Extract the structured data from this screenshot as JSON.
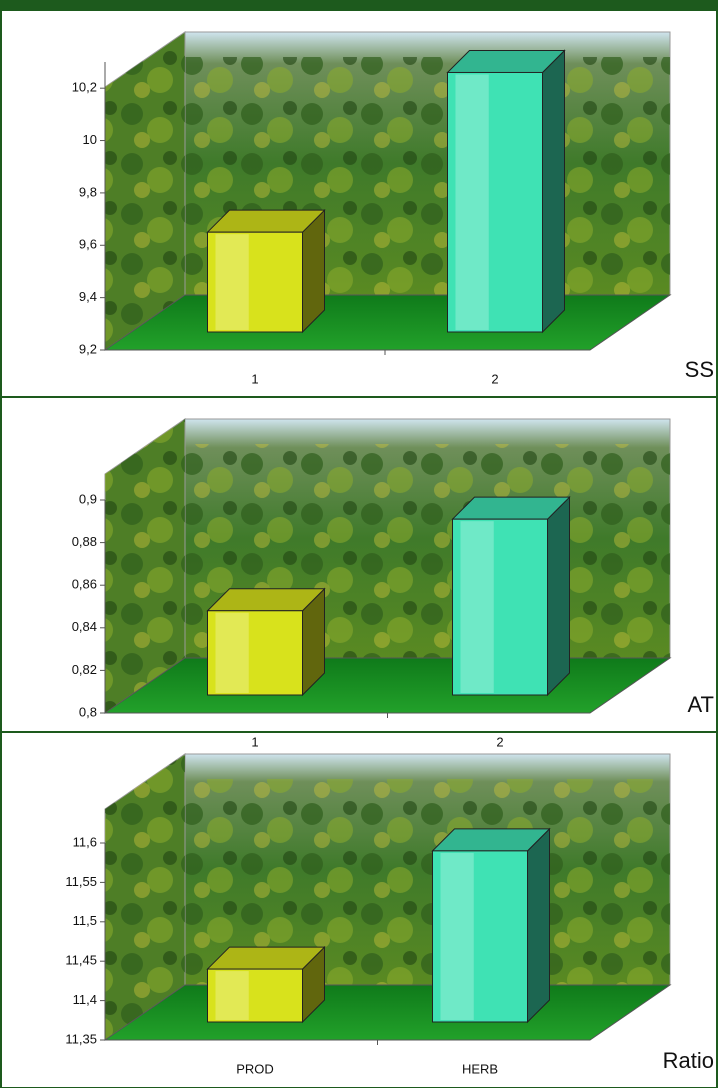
{
  "chart_data": [
    {
      "type": "bar3d",
      "title": "SS",
      "categories": [
        "1",
        "2"
      ],
      "values": [
        9.65,
        10.26
      ],
      "colors": [
        "#d8e21c",
        "#3fe2b4"
      ],
      "ylim": [
        9.2,
        10.3
      ],
      "yticks": [
        {
          "value": 9.2,
          "label": "9,2"
        },
        {
          "value": 9.4,
          "label": "9,4"
        },
        {
          "value": 9.6,
          "label": "9,6"
        },
        {
          "value": 9.8,
          "label": "9,8"
        },
        10,
        {
          "value": 10.2,
          "label": "10,2"
        }
      ]
    },
    {
      "type": "bar3d",
      "title": "AT",
      "categories": [
        "1",
        "2"
      ],
      "values": [
        0.848,
        0.891
      ],
      "colors": [
        "#d8e21c",
        "#3fe2b4"
      ],
      "ylim": [
        0.8,
        0.9
      ],
      "yticks": [
        {
          "value": 0.8,
          "label": "0,8"
        },
        {
          "value": 0.82,
          "label": "0,82"
        },
        {
          "value": 0.84,
          "label": "0,84"
        },
        {
          "value": 0.86,
          "label": "0,86"
        },
        {
          "value": 0.88,
          "label": "0,88"
        },
        {
          "value": 0.9,
          "label": "0,9"
        }
      ]
    },
    {
      "type": "bar3d",
      "title": "Ratio",
      "categories": [
        "PROD",
        "HERB"
      ],
      "values": [
        11.44,
        11.59
      ],
      "colors": [
        "#d8e21c",
        "#3fe2b4"
      ],
      "ylim": [
        11.35,
        11.6
      ],
      "yticks": [
        {
          "value": 11.35,
          "label": "11,35"
        },
        {
          "value": 11.4,
          "label": "11,4"
        },
        {
          "value": 11.45,
          "label": "11,45"
        },
        {
          "value": 11.5,
          "label": "11,5"
        },
        {
          "value": 11.55,
          "label": "11,55"
        },
        {
          "value": 11.6,
          "label": "11,6"
        }
      ]
    }
  ]
}
